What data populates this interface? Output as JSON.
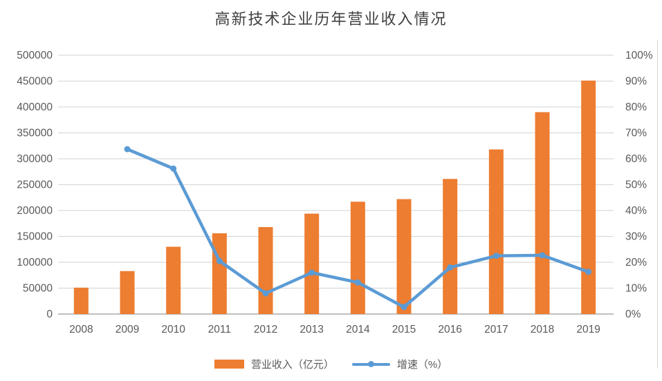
{
  "title": "高新技术企业历年营业收入情况",
  "colors": {
    "bar": "#ED7D31",
    "line": "#5B9BD5",
    "grid": "#D9D9D9",
    "baseline": "#BFBFBF",
    "axis_text": "#595959",
    "title_text": "#404040"
  },
  "chart_data": {
    "type": "bar",
    "subtype": "combo-bar-line-dual-axis",
    "title": "高新技术企业历年营业收入情况",
    "categories": [
      "2008",
      "2009",
      "2010",
      "2011",
      "2012",
      "2013",
      "2014",
      "2015",
      "2016",
      "2017",
      "2018",
      "2019"
    ],
    "series": [
      {
        "name": "营业收入（亿元）",
        "type": "bar",
        "axis": "left",
        "color": "#ED7D31",
        "values": [
          51000,
          83000,
          130000,
          156000,
          168000,
          194000,
          217000,
          222000,
          261000,
          318000,
          390000,
          451000
        ]
      },
      {
        "name": "增速（%）",
        "type": "line",
        "axis": "right",
        "color": "#5B9BD5",
        "values": [
          null,
          63.7,
          56.2,
          20.5,
          8,
          16,
          12.2,
          2.7,
          18,
          22.5,
          22.7,
          16.3
        ]
      }
    ],
    "left_axis": {
      "min": 0,
      "max": 500000,
      "step": 50000,
      "tick_labels": [
        "0",
        "50000",
        "100000",
        "150000",
        "200000",
        "250000",
        "300000",
        "350000",
        "400000",
        "450000",
        "500000"
      ]
    },
    "right_axis": {
      "min": 0,
      "max": 100,
      "step": 10,
      "tick_labels": [
        "0%",
        "10%",
        "20%",
        "30%",
        "40%",
        "50%",
        "60%",
        "70%",
        "80%",
        "90%",
        "100%"
      ]
    },
    "xlabel": "",
    "ylabel": "",
    "grid": true,
    "legend_position": "bottom"
  },
  "legend": {
    "bar_label": "营业收入（亿元）",
    "line_label": "增速（%）"
  }
}
